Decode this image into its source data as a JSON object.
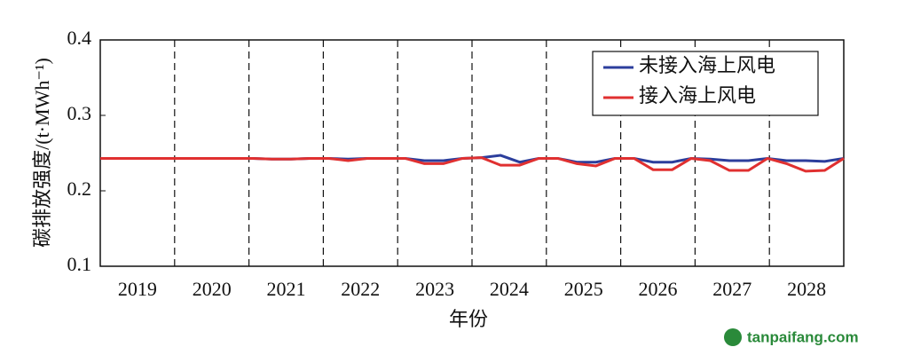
{
  "chart_data": {
    "type": "line",
    "ylabel": "碳排放强度/(t·MWh⁻¹)",
    "xlabel": "年份",
    "categories": [
      "2019",
      "2020",
      "2021",
      "2022",
      "2023",
      "2024",
      "2025",
      "2026",
      "2027",
      "2028"
    ],
    "ylim": [
      0.1,
      0.4
    ],
    "yticks": [
      0.1,
      0.2,
      0.3,
      0.4
    ],
    "year_dividers": true,
    "legend": "upper right",
    "series": [
      {
        "name": "未接入海上风电",
        "color": "#2c3e9c",
        "values": [
          [
            0.243,
            0.243,
            0.243,
            0.243
          ],
          [
            0.243,
            0.243,
            0.243,
            0.243
          ],
          [
            0.243,
            0.242,
            0.242,
            0.243
          ],
          [
            0.243,
            0.242,
            0.243,
            0.243
          ],
          [
            0.243,
            0.24,
            0.24,
            0.243
          ],
          [
            0.244,
            0.247,
            0.238,
            0.243
          ],
          [
            0.243,
            0.238,
            0.238,
            0.243
          ],
          [
            0.243,
            0.238,
            0.238,
            0.243
          ],
          [
            0.242,
            0.24,
            0.24,
            0.243
          ],
          [
            0.24,
            0.24,
            0.239,
            0.243
          ]
        ]
      },
      {
        "name": "接入海上风电",
        "color": "#e03030",
        "values": [
          [
            0.243,
            0.243,
            0.243,
            0.243
          ],
          [
            0.243,
            0.243,
            0.243,
            0.243
          ],
          [
            0.243,
            0.242,
            0.242,
            0.243
          ],
          [
            0.243,
            0.24,
            0.243,
            0.243
          ],
          [
            0.243,
            0.236,
            0.236,
            0.243
          ],
          [
            0.244,
            0.234,
            0.234,
            0.243
          ],
          [
            0.243,
            0.236,
            0.233,
            0.243
          ],
          [
            0.243,
            0.228,
            0.228,
            0.243
          ],
          [
            0.24,
            0.227,
            0.227,
            0.243
          ],
          [
            0.236,
            0.226,
            0.227,
            0.243
          ]
        ]
      }
    ]
  },
  "watermark": "tanpaifang.com"
}
